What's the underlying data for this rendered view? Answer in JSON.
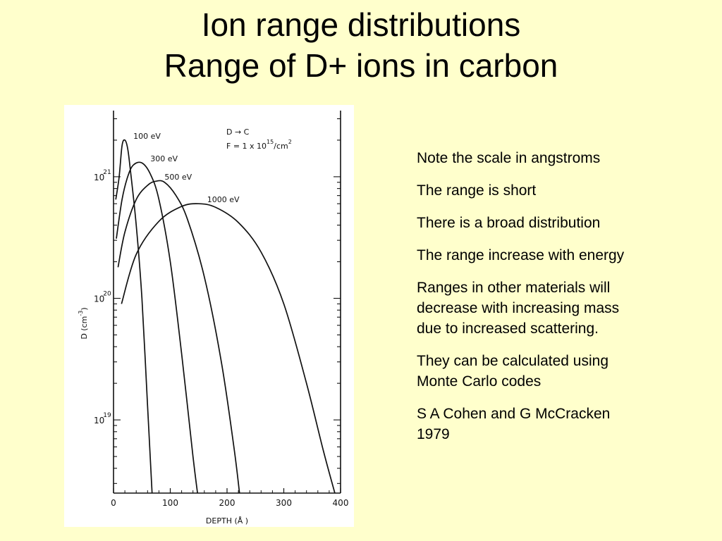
{
  "slide": {
    "title_line1": "Ion range distributions",
    "title_line2": "Range of D+ ions in carbon"
  },
  "notes": [
    {
      "lines": [
        "Note the scale in angstroms"
      ]
    },
    {
      "lines": [
        "The range is short"
      ]
    },
    {
      "lines": [
        "There is a broad distribution"
      ]
    },
    {
      "lines": [
        "The range increase with energy"
      ]
    },
    {
      "lines": [
        "Ranges in other materials will",
        "decrease with increasing mass",
        "due to increased scattering."
      ]
    },
    {
      "lines": [
        "They can be calculated using",
        "Monte Carlo codes"
      ]
    },
    {
      "lines": [
        "S A Cohen and  G McCracken",
        "1979"
      ]
    }
  ],
  "chart_data": {
    "type": "line",
    "title": "",
    "xlabel": "DEPTH (Å )",
    "ylabel": "D (cm",
    "ylabel_exp": "-3",
    "ylabel_close": ")",
    "xlim": [
      0,
      400
    ],
    "ylim": [
      2.5e+18,
      3.5e+21
    ],
    "y_scale": "log",
    "x_ticks": [
      0,
      100,
      200,
      300,
      400
    ],
    "x_tick_labels": [
      "0",
      "100",
      "200",
      "300",
      "400"
    ],
    "y_ticks": [
      1e+19,
      1e+20,
      1e+21
    ],
    "y_tick_labels": [
      {
        "base": "10",
        "exp": "19"
      },
      {
        "base": "10",
        "exp": "20"
      },
      {
        "base": "10",
        "exp": "21"
      }
    ],
    "annotation": {
      "line1": "D → C",
      "line2_prefix": "F = 1 x 10",
      "line2_exp": "15",
      "line2_suffix": "/cm",
      "line2_suffix_exp": "2"
    },
    "series": [
      {
        "name": "100 eV",
        "x": [
          4,
          10,
          15,
          20,
          25,
          30,
          40,
          50,
          60,
          68
        ],
        "y": [
          6.5e+20,
          1e+21,
          1.8e+21,
          2e+21,
          1.7e+21,
          1.1e+21,
          4e+20,
          1e+20,
          1.3e+19,
          2.5e+18
        ]
      },
      {
        "name": "300 eV",
        "x": [
          5,
          15,
          25,
          35,
          50,
          65,
          80,
          100,
          120,
          140,
          148
        ],
        "y": [
          3.1e+20,
          6.5e+20,
          1e+21,
          1.25e+21,
          1.3e+21,
          1.05e+21,
          6.5e+20,
          2e+20,
          3.5e+19,
          5e+18,
          2.5e+18
        ]
      },
      {
        "name": "500 eV",
        "x": [
          8,
          20,
          40,
          60,
          75,
          90,
          110,
          130,
          160,
          190,
          212,
          222
        ],
        "y": [
          1.8e+20,
          3.5e+20,
          6.5e+20,
          8.5e+20,
          9.2e+20,
          9e+20,
          7e+20,
          4.5e+20,
          1.5e+20,
          3e+19,
          6e+18,
          2.5e+18
        ]
      },
      {
        "name": "1000 eV",
        "x": [
          14,
          40,
          80,
          120,
          150,
          180,
          220,
          260,
          300,
          340,
          370,
          390
        ],
        "y": [
          9e+19,
          2.3e+20,
          4.3e+20,
          5.7e+20,
          6e+20,
          5.6e+20,
          4.2e+20,
          2.4e+20,
          9e+19,
          2e+19,
          5.5e+18,
          2.5e+18
        ]
      }
    ],
    "grid": false,
    "legend": "labels on curves"
  }
}
